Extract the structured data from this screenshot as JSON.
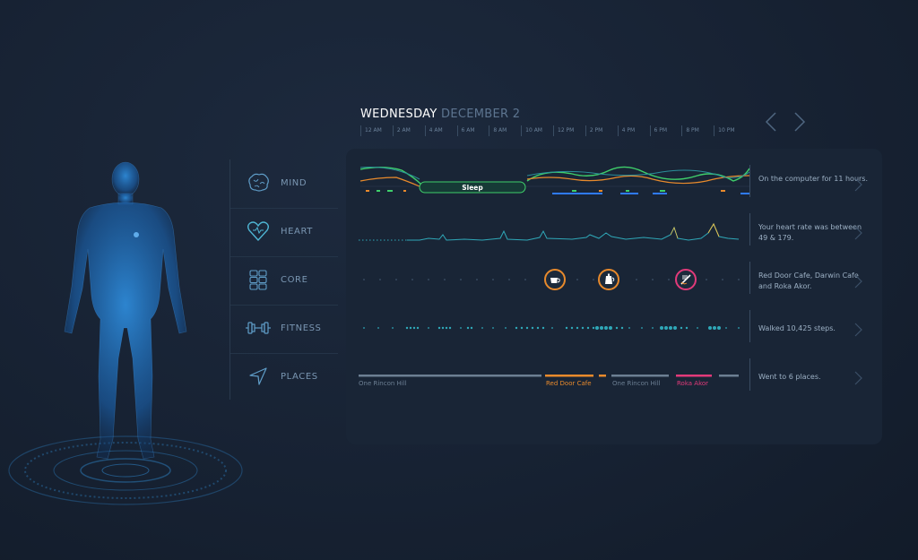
{
  "header": {
    "day": "WEDNESDAY",
    "date": "DECEMBER 2"
  },
  "time_axis": [
    "12 AM",
    "2 AM",
    "4 AM",
    "6 AM",
    "8 AM",
    "10 AM",
    "12 PM",
    "2 PM",
    "4 PM",
    "6 PM",
    "8 PM",
    "10 PM"
  ],
  "categories": [
    {
      "label": "MIND",
      "icon": "brain-icon"
    },
    {
      "label": "HEART",
      "icon": "heart-icon"
    },
    {
      "label": "CORE",
      "icon": "grid-icon"
    },
    {
      "label": "FITNESS",
      "icon": "dumbbell-icon"
    },
    {
      "label": "PLACES",
      "icon": "location-arrow-icon"
    }
  ],
  "mind": {
    "sleep_label": "Sleep"
  },
  "summaries": {
    "mind": "On the computer for 11 hours.",
    "heart": "Your heart rate was between 49 & 179.",
    "core": "Red Door Cafe, Darwin Cafe and Roka Akor.",
    "fitness": "Walked 10,425 steps.",
    "places": "Went to 6 places."
  },
  "places": [
    {
      "label": "One Rincon Hill",
      "color": "#6c7f93"
    },
    {
      "label": "Red Door Cafe",
      "color": "#e28a2c"
    },
    {
      "label": "One Rincon Hill",
      "color": "#6c7f93"
    },
    {
      "label": "Roka Akor",
      "color": "#e23a7a"
    }
  ],
  "colors": {
    "accent_green": "#3fcf6b",
    "accent_orange": "#e88a2c",
    "accent_pink": "#e23a7a",
    "accent_teal": "#2fa8b8",
    "accent_blue": "#2f7bff"
  }
}
